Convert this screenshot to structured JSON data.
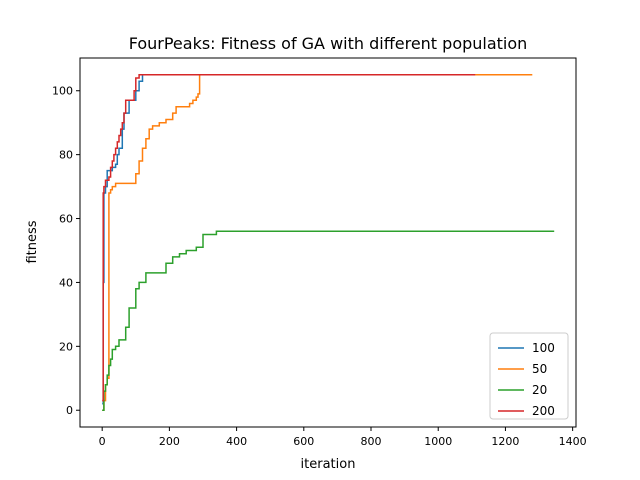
{
  "chart_data": {
    "type": "line",
    "title": "FourPeaks: Fitness of GA with different population",
    "xlabel": "iteration",
    "ylabel": "fitness",
    "xlim": [
      -66,
      1410
    ],
    "ylim": [
      -5.25,
      110.25
    ],
    "xticks": [
      0,
      200,
      400,
      600,
      800,
      1000,
      1200,
      1400
    ],
    "yticks": [
      0,
      20,
      40,
      60,
      80,
      100
    ],
    "grid": false,
    "legend_position": "lower-right",
    "series": [
      {
        "name": "100",
        "color": "#1f77b4",
        "x": [
          0,
          3,
          5,
          10,
          15,
          20,
          30,
          40,
          45,
          50,
          60,
          65,
          70,
          80,
          90,
          100,
          110,
          120,
          1110
        ],
        "y": [
          2,
          40,
          68,
          70,
          75,
          75,
          76,
          77,
          80,
          82,
          88,
          93,
          93,
          97,
          97,
          100,
          103,
          105,
          105
        ]
      },
      {
        "name": "50",
        "color": "#ff7f0e",
        "x": [
          0,
          5,
          10,
          15,
          20,
          25,
          30,
          40,
          50,
          60,
          70,
          80,
          90,
          100,
          110,
          120,
          130,
          140,
          150,
          170,
          190,
          210,
          220,
          230,
          240,
          260,
          270,
          280,
          285,
          290,
          1280
        ],
        "y": [
          0,
          3,
          8,
          10,
          68,
          69,
          70,
          71,
          71,
          71,
          71,
          71,
          71,
          74,
          78,
          82,
          85,
          88,
          89,
          90,
          91,
          93,
          95,
          95,
          95,
          96,
          97,
          98,
          99,
          105,
          105
        ]
      },
      {
        "name": "20",
        "color": "#2ca02c",
        "x": [
          0,
          5,
          10,
          15,
          20,
          25,
          30,
          40,
          50,
          60,
          70,
          80,
          90,
          100,
          110,
          130,
          150,
          170,
          190,
          210,
          230,
          250,
          280,
          300,
          340,
          400,
          600,
          800,
          1000,
          1200,
          1345
        ],
        "y": [
          0,
          6,
          8,
          11,
          14,
          16,
          19,
          20,
          22,
          22,
          26,
          32,
          32,
          38,
          40,
          43,
          43,
          43,
          46,
          48,
          49,
          50,
          51,
          55,
          56,
          56,
          56,
          56,
          56,
          56,
          56
        ]
      },
      {
        "name": "200",
        "color": "#d62728",
        "x": [
          0,
          3,
          5,
          10,
          20,
          25,
          30,
          35,
          40,
          45,
          50,
          55,
          60,
          65,
          70,
          80,
          90,
          95,
          100,
          110,
          120,
          1110
        ],
        "y": [
          3,
          68,
          70,
          72,
          73,
          76,
          78,
          80,
          82,
          84,
          86,
          88,
          90,
          93,
          97,
          97,
          97,
          100,
          104,
          105,
          105,
          105
        ]
      }
    ]
  }
}
